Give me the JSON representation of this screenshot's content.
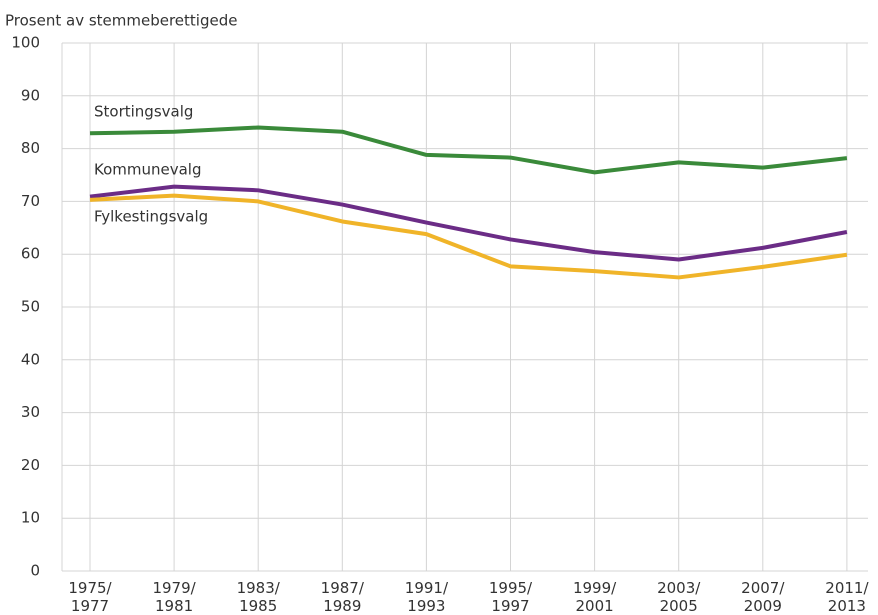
{
  "chart_data": {
    "type": "line",
    "y_axis_label": "Prosent av stemmeberettigede",
    "categories": [
      [
        "1975/",
        "1977"
      ],
      [
        "1979/",
        "1981"
      ],
      [
        "1983/",
        "1985"
      ],
      [
        "1987/",
        "1989"
      ],
      [
        "1991/",
        "1993"
      ],
      [
        "1995/",
        "1997"
      ],
      [
        "1999/",
        "2001"
      ],
      [
        "2003/",
        "2005"
      ],
      [
        "2007/",
        "2009"
      ],
      [
        "2011/",
        "2013"
      ]
    ],
    "series": [
      {
        "name": "Stortingsvalg",
        "color": "#3a8a3a",
        "values": [
          82.9,
          83.2,
          84.0,
          83.2,
          78.8,
          78.3,
          75.5,
          77.4,
          76.4,
          78.2
        ]
      },
      {
        "name": "Kommunevalg",
        "color": "#6b2c86",
        "values": [
          70.9,
          72.8,
          72.1,
          69.4,
          66.0,
          62.8,
          60.4,
          59.0,
          61.2,
          64.2
        ]
      },
      {
        "name": "Fylkestingsvalg",
        "color": "#f0b429",
        "values": [
          70.3,
          71.1,
          70.0,
          66.2,
          63.8,
          57.7,
          56.8,
          55.6,
          57.6,
          59.9
        ]
      }
    ],
    "ylim": [
      0,
      100
    ],
    "yticks": [
      0,
      10,
      20,
      30,
      40,
      50,
      60,
      70,
      80,
      90,
      100
    ],
    "grid": true
  }
}
